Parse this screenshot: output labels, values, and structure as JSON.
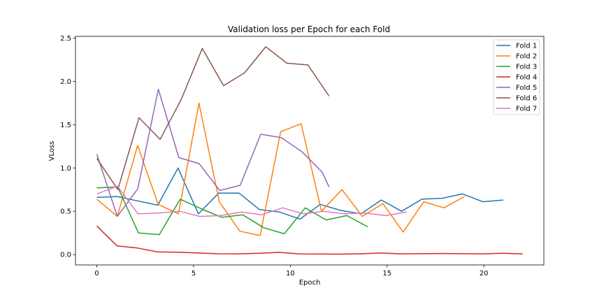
{
  "chart_data": {
    "type": "line",
    "title": "Validation loss per Epoch for each Fold",
    "xlabel": "Epoch",
    "ylabel": "VLoss",
    "xlim": [
      -1.1,
      23.1
    ],
    "ylim": [
      -0.12,
      2.52
    ],
    "xticks": [
      0,
      5,
      10,
      15,
      20
    ],
    "yticks": [
      0.0,
      0.5,
      1.0,
      1.5,
      2.0,
      2.5
    ],
    "ytick_labels": [
      "0.0",
      "0.5",
      "1.0",
      "1.5",
      "2.0",
      "2.5"
    ],
    "grid": false,
    "legend_position": "top-right",
    "series": [
      {
        "name": "Fold 1",
        "color": "#1f77b4",
        "x": [
          0,
          1.05,
          2.1,
          3.15,
          4.2,
          5.25,
          6.3,
          7.35,
          8.4,
          9.45,
          10.5,
          11.55,
          12.6,
          13.65,
          14.7,
          15.75,
          16.8,
          17.85,
          18.9,
          19.95,
          21.0
        ],
        "values": [
          0.66,
          0.67,
          0.62,
          0.57,
          1.0,
          0.47,
          0.71,
          0.71,
          0.52,
          0.49,
          0.41,
          0.58,
          0.51,
          0.47,
          0.63,
          0.5,
          0.64,
          0.65,
          0.7,
          0.61,
          0.63
        ]
      },
      {
        "name": "Fold 2",
        "color": "#ff7f0e",
        "x": [
          0,
          1.06,
          2.11,
          3.17,
          4.22,
          5.28,
          6.33,
          7.39,
          8.44,
          9.5,
          10.56,
          11.61,
          12.67,
          13.72,
          14.78,
          15.83,
          16.89,
          17.94,
          19.0
        ],
        "values": [
          0.64,
          0.44,
          1.26,
          0.58,
          0.47,
          1.75,
          0.61,
          0.27,
          0.22,
          1.42,
          1.51,
          0.5,
          0.75,
          0.44,
          0.59,
          0.26,
          0.61,
          0.54,
          0.67
        ]
      },
      {
        "name": "Fold 3",
        "color": "#2ca02c",
        "x": [
          0,
          1.08,
          2.15,
          3.23,
          4.31,
          5.38,
          6.46,
          7.54,
          8.62,
          9.69,
          10.77,
          11.85,
          12.92,
          14.0
        ],
        "values": [
          0.77,
          0.78,
          0.25,
          0.23,
          0.64,
          0.53,
          0.43,
          0.46,
          0.31,
          0.24,
          0.54,
          0.4,
          0.45,
          0.32
        ]
      },
      {
        "name": "Fold 4",
        "color": "#d62728",
        "x": [
          0,
          1.05,
          2.1,
          3.14,
          4.19,
          5.24,
          6.29,
          7.33,
          8.38,
          9.43,
          10.48,
          11.52,
          12.57,
          13.62,
          14.67,
          15.71,
          16.76,
          17.81,
          18.86,
          19.9,
          20.95,
          22.0
        ],
        "values": [
          0.33,
          0.1,
          0.075,
          0.03,
          0.028,
          0.018,
          0.009,
          0.008,
          0.016,
          0.025,
          0.007,
          0.006,
          0.005,
          0.009,
          0.018,
          0.008,
          0.01,
          0.012,
          0.01,
          0.008,
          0.015,
          0.008
        ]
      },
      {
        "name": "Fold 5",
        "color": "#9467bd",
        "x": [
          0,
          1.06,
          2.12,
          3.18,
          4.24,
          5.29,
          6.35,
          7.41,
          8.47,
          9.53,
          10.59,
          11.65,
          12.0
        ],
        "values": [
          1.16,
          0.44,
          0.76,
          1.91,
          1.12,
          1.05,
          0.74,
          0.8,
          1.39,
          1.35,
          1.19,
          0.95,
          0.78
        ]
      },
      {
        "name": "Fold 6",
        "color": "#8c564b",
        "x": [
          0,
          1.09,
          2.18,
          3.27,
          4.36,
          5.45,
          6.55,
          7.64,
          8.73,
          9.82,
          10.91,
          12.0
        ],
        "values": [
          1.11,
          0.75,
          1.58,
          1.33,
          1.79,
          2.38,
          1.95,
          2.1,
          2.4,
          2.21,
          2.19,
          1.83
        ]
      },
      {
        "name": "Fold 7",
        "color": "#e377c2",
        "x": [
          0,
          1.07,
          2.13,
          3.2,
          4.27,
          5.33,
          6.4,
          7.47,
          8.53,
          9.6,
          10.67,
          11.73,
          12.8,
          13.87,
          14.93,
          16.0
        ],
        "values": [
          0.7,
          0.79,
          0.47,
          0.48,
          0.5,
          0.44,
          0.45,
          0.49,
          0.46,
          0.54,
          0.47,
          0.5,
          0.47,
          0.48,
          0.45,
          0.49
        ]
      }
    ]
  }
}
